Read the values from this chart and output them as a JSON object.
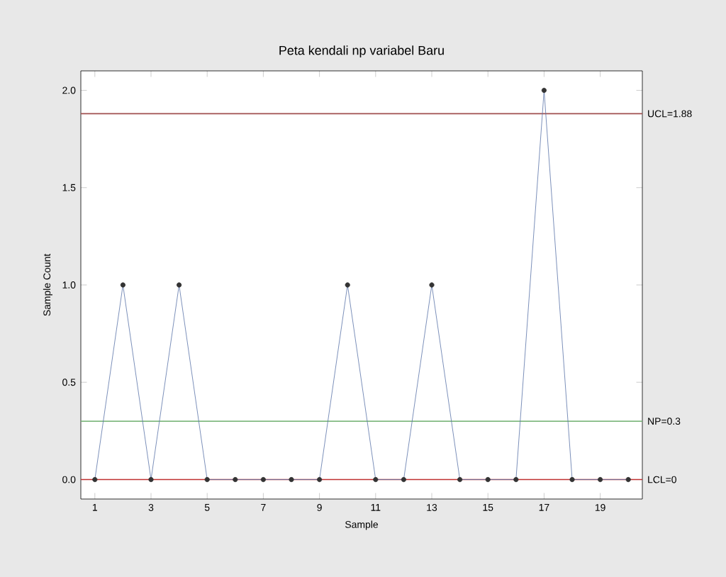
{
  "chart_data": {
    "type": "line",
    "title": "Peta kendali np variabel Baru",
    "xlabel": "Sample",
    "ylabel": "Sample Count",
    "x": [
      1,
      2,
      3,
      4,
      5,
      6,
      7,
      8,
      9,
      10,
      11,
      12,
      13,
      14,
      15,
      16,
      17,
      18,
      19,
      20
    ],
    "series": [
      {
        "color": "#5b74a8",
        "values": [
          0,
          1,
          0,
          1,
          0,
          0,
          0,
          0,
          0,
          1,
          0,
          0,
          1,
          0,
          0,
          0,
          2,
          0,
          0,
          0
        ]
      }
    ],
    "marker": "circle",
    "xlim": [
      0.5,
      20.5
    ],
    "xticks": [
      1,
      3,
      5,
      7,
      9,
      11,
      13,
      15,
      17,
      19
    ],
    "ylim": [
      -0.1,
      2.1
    ],
    "yticks": [
      {
        "value": 0,
        "label": "0.0"
      },
      {
        "value": 0.5,
        "label": "0.5"
      },
      {
        "value": 1,
        "label": "1.0"
      },
      {
        "value": 1.5,
        "label": "1.5"
      },
      {
        "value": 2,
        "label": "2.0"
      }
    ],
    "ref_lines": [
      {
        "axis": "y",
        "value": 1.88,
        "label": "UCL=1.88",
        "color": "#a05050"
      },
      {
        "axis": "y",
        "value": 0.3,
        "label": "NP=0.3",
        "color": "#70b070"
      },
      {
        "axis": "y",
        "value": 0,
        "label": "LCL=0",
        "color": "#c03030"
      }
    ]
  }
}
